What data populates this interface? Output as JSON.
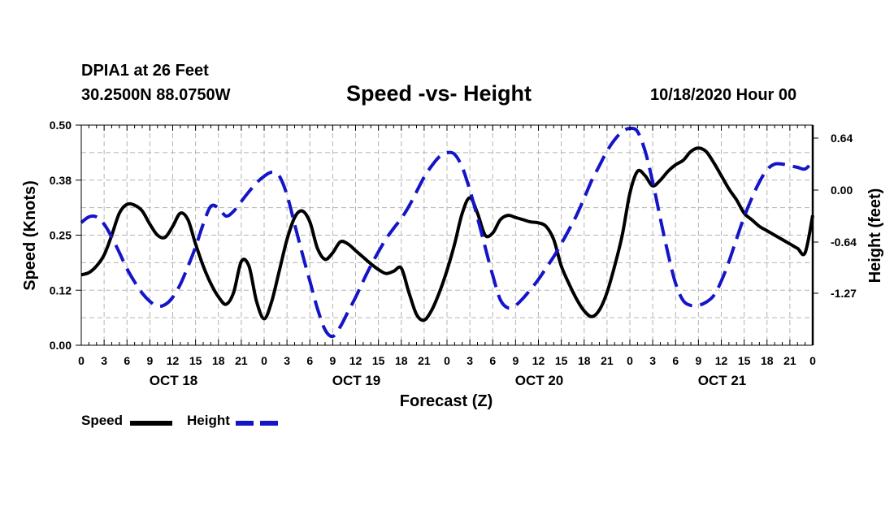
{
  "header": {
    "station": "DPIA1 at 26 Feet",
    "location": "30.2500N 88.0750W",
    "title": "Speed -vs- Height",
    "run": "10/18/2020 Hour 00"
  },
  "legend": {
    "speed": "Speed",
    "height": "Height"
  },
  "colors": {
    "speed": "#000000",
    "height": "#1414c8",
    "grid": "#b4b4b4"
  },
  "chart_data": {
    "type": "line",
    "title": "Speed -vs- Height",
    "xlabel": "Forecast (Z)",
    "ylabel": "Speed (Knots)",
    "y2label": "Height (feet)",
    "xlim": [
      0,
      96
    ],
    "ylim": [
      0.0,
      0.5
    ],
    "y2lim": [
      -1.91,
      0.8
    ],
    "y_ticks": [
      "0.00",
      "0.12",
      "0.25",
      "0.38",
      "0.50"
    ],
    "y_tick_values": [
      0.0,
      0.125,
      0.25,
      0.375,
      0.5
    ],
    "y2_ticks": [
      "0.64",
      "0.00",
      "-0.64",
      "-1.27"
    ],
    "y2_tick_values": [
      0.64,
      0.0,
      -0.64,
      -1.27
    ],
    "x_tick_labels": [
      "0",
      "3",
      "6",
      "9",
      "12",
      "15",
      "18",
      "21",
      "0",
      "3",
      "6",
      "9",
      "12",
      "15",
      "18",
      "21",
      "0",
      "3",
      "6",
      "9",
      "12",
      "15",
      "18",
      "21",
      "0",
      "3",
      "6",
      "9",
      "12",
      "15",
      "18",
      "21",
      "0"
    ],
    "day_labels": [
      {
        "label": "OCT 18",
        "hour": 12
      },
      {
        "label": "OCT 19",
        "hour": 36
      },
      {
        "label": "OCT 20",
        "hour": 60
      },
      {
        "label": "OCT 21",
        "hour": 84
      }
    ],
    "grid": true,
    "series": [
      {
        "name": "Speed",
        "axis": "left",
        "style": "solid",
        "x": [
          0,
          1,
          2,
          3,
          4,
          5,
          6,
          7,
          8,
          9,
          10,
          11,
          12,
          13,
          14,
          15,
          16,
          17,
          18,
          19,
          20,
          21,
          22,
          23,
          24,
          25,
          26,
          27,
          28,
          29,
          30,
          31,
          32,
          33,
          34,
          35,
          36,
          37,
          38,
          39,
          40,
          41,
          42,
          43,
          44,
          45,
          46,
          47,
          48,
          49,
          50,
          51,
          52,
          53,
          54,
          55,
          56,
          57,
          58,
          59,
          60,
          61,
          62,
          63,
          64,
          65,
          66,
          67,
          68,
          69,
          70,
          71,
          72,
          73,
          74,
          75,
          76,
          77,
          78,
          79,
          80,
          81,
          82,
          83,
          84,
          85,
          86,
          87,
          88,
          89,
          90,
          91,
          92,
          93,
          94,
          95,
          96
        ],
        "y": [
          0.16,
          0.165,
          0.18,
          0.205,
          0.25,
          0.3,
          0.32,
          0.318,
          0.305,
          0.275,
          0.25,
          0.245,
          0.27,
          0.3,
          0.285,
          0.23,
          0.18,
          0.14,
          0.11,
          0.093,
          0.12,
          0.19,
          0.18,
          0.1,
          0.06,
          0.1,
          0.17,
          0.24,
          0.29,
          0.305,
          0.28,
          0.22,
          0.195,
          0.21,
          0.235,
          0.23,
          0.215,
          0.2,
          0.185,
          0.172,
          0.163,
          0.168,
          0.175,
          0.12,
          0.07,
          0.057,
          0.08,
          0.12,
          0.17,
          0.23,
          0.3,
          0.335,
          0.3,
          0.25,
          0.255,
          0.285,
          0.295,
          0.29,
          0.285,
          0.28,
          0.278,
          0.27,
          0.24,
          0.18,
          0.14,
          0.105,
          0.078,
          0.065,
          0.08,
          0.12,
          0.18,
          0.25,
          0.345,
          0.395,
          0.385,
          0.362,
          0.375,
          0.395,
          0.41,
          0.42,
          0.44,
          0.448,
          0.44,
          0.415,
          0.385,
          0.355,
          0.33,
          0.3,
          0.285,
          0.27,
          0.26,
          0.25,
          0.24,
          0.23,
          0.22,
          0.21,
          0.295
        ]
      },
      {
        "name": "Height",
        "axis": "right",
        "style": "dashed",
        "x": [
          0,
          1,
          2,
          3,
          4,
          5,
          6,
          7,
          8,
          9,
          10,
          11,
          12,
          13,
          14,
          15,
          16,
          17,
          18,
          19,
          20,
          21,
          22,
          23,
          24,
          25,
          26,
          27,
          28,
          29,
          30,
          31,
          32,
          33,
          34,
          35,
          36,
          37,
          38,
          39,
          40,
          41,
          42,
          43,
          44,
          45,
          46,
          47,
          48,
          49,
          50,
          51,
          52,
          53,
          54,
          55,
          56,
          57,
          58,
          59,
          60,
          61,
          62,
          63,
          64,
          65,
          66,
          67,
          68,
          69,
          70,
          71,
          72,
          73,
          74,
          75,
          76,
          77,
          78,
          79,
          80,
          81,
          82,
          83,
          84,
          85,
          86,
          87,
          88,
          89,
          90,
          91,
          92,
          93,
          94,
          95,
          96
        ],
        "y": [
          -0.4,
          -0.33,
          -0.33,
          -0.42,
          -0.58,
          -0.77,
          -0.97,
          -1.13,
          -1.27,
          -1.37,
          -1.43,
          -1.41,
          -1.32,
          -1.16,
          -0.94,
          -0.7,
          -0.42,
          -0.2,
          -0.22,
          -0.32,
          -0.26,
          -0.14,
          -0.02,
          0.09,
          0.17,
          0.22,
          0.17,
          -0.06,
          -0.42,
          -0.78,
          -1.12,
          -1.46,
          -1.72,
          -1.8,
          -1.68,
          -1.5,
          -1.32,
          -1.12,
          -0.93,
          -0.76,
          -0.6,
          -0.47,
          -0.35,
          -0.2,
          -0.02,
          0.16,
          0.3,
          0.41,
          0.46,
          0.44,
          0.28,
          0.0,
          -0.34,
          -0.7,
          -1.05,
          -1.35,
          -1.45,
          -1.42,
          -1.33,
          -1.22,
          -1.1,
          -0.96,
          -0.82,
          -0.66,
          -0.49,
          -0.31,
          -0.1,
          0.12,
          0.3,
          0.48,
          0.62,
          0.72,
          0.76,
          0.72,
          0.48,
          0.1,
          -0.35,
          -0.78,
          -1.15,
          -1.36,
          -1.42,
          -1.42,
          -1.38,
          -1.3,
          -1.12,
          -0.88,
          -0.6,
          -0.33,
          -0.1,
          0.1,
          0.25,
          0.32,
          0.32,
          0.3,
          0.28,
          0.26,
          0.35
        ]
      }
    ]
  }
}
